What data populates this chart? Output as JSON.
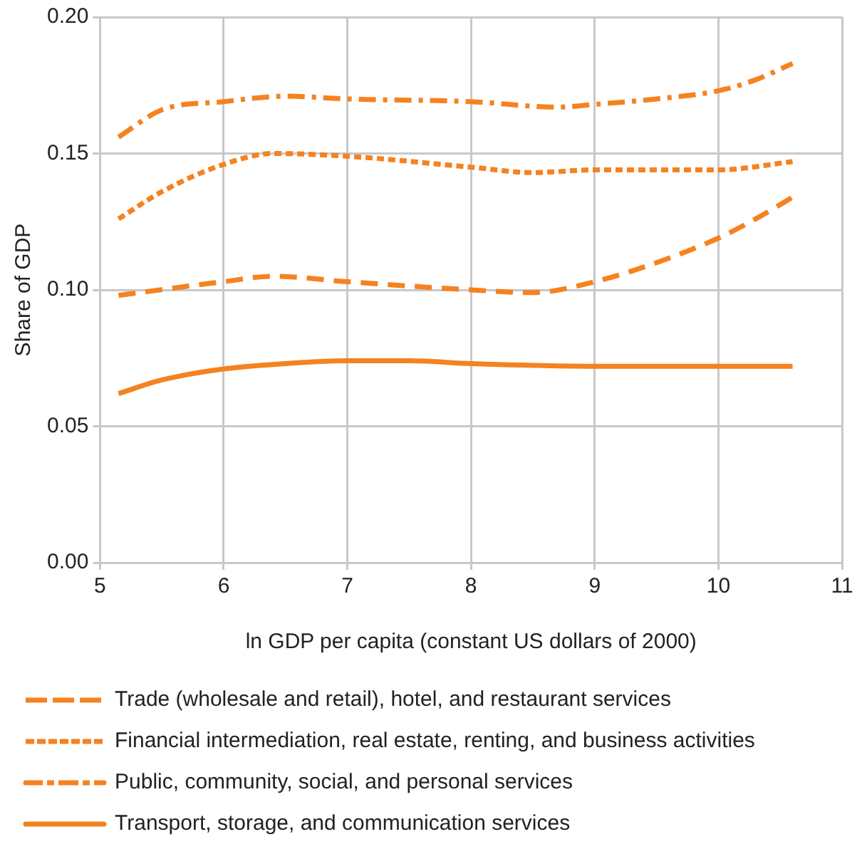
{
  "chart_data": {
    "type": "line",
    "xlabel": "ln GDP per capita (constant US dollars of 2000)",
    "ylabel": "Share of GDP",
    "xlim": [
      5,
      11
    ],
    "xticks": [
      5,
      6,
      7,
      8,
      9,
      10,
      11
    ],
    "ylim": [
      0,
      0.2
    ],
    "yticks": [
      {
        "value": 0,
        "label": "0.00"
      },
      {
        "value": 0.05,
        "label": "0.05"
      },
      {
        "value": 0.1,
        "label": "0.10"
      },
      {
        "value": 0.15,
        "label": "0.15"
      },
      {
        "value": 0.2,
        "label": "0.20"
      }
    ],
    "grid": true,
    "legend": "bottom",
    "marker": "none",
    "series": [
      {
        "name": "Trade (wholesale and retail), hotel, and restaurant services",
        "color": "#f58220",
        "line_style": "dashed",
        "x": [
          5.15,
          6,
          6.4,
          7,
          8,
          8.5,
          9,
          9.5,
          10,
          10.3,
          10.6
        ],
        "values": [
          0.098,
          0.103,
          0.105,
          0.103,
          0.1,
          0.099,
          0.103,
          0.11,
          0.119,
          0.126,
          0.134
        ]
      },
      {
        "name": "Financial intermediation, real estate, renting, and business activities",
        "color": "#f58220",
        "line_style": "dotted",
        "x": [
          5.15,
          5.5,
          6,
          6.4,
          7,
          8,
          8.5,
          9,
          10,
          10.6
        ],
        "values": [
          0.126,
          0.136,
          0.146,
          0.15,
          0.149,
          0.145,
          0.143,
          0.144,
          0.144,
          0.147
        ]
      },
      {
        "name": "Public, community, social, and personal services",
        "color": "#f58220",
        "line_style": "dashdot",
        "x": [
          5.15,
          5.5,
          6,
          6.5,
          7,
          8,
          8.7,
          9,
          9.5,
          10,
          10.3,
          10.6
        ],
        "values": [
          0.156,
          0.166,
          0.169,
          0.171,
          0.17,
          0.169,
          0.167,
          0.168,
          0.17,
          0.173,
          0.177,
          0.183
        ]
      },
      {
        "name": "Transport, storage, and communication services",
        "color": "#f58220",
        "line_style": "solid",
        "x": [
          5.15,
          5.5,
          6,
          6.5,
          7,
          7.5,
          8,
          9,
          10,
          10.6
        ],
        "values": [
          0.062,
          0.067,
          0.071,
          0.073,
          0.074,
          0.074,
          0.073,
          0.072,
          0.072,
          0.072
        ]
      }
    ]
  }
}
